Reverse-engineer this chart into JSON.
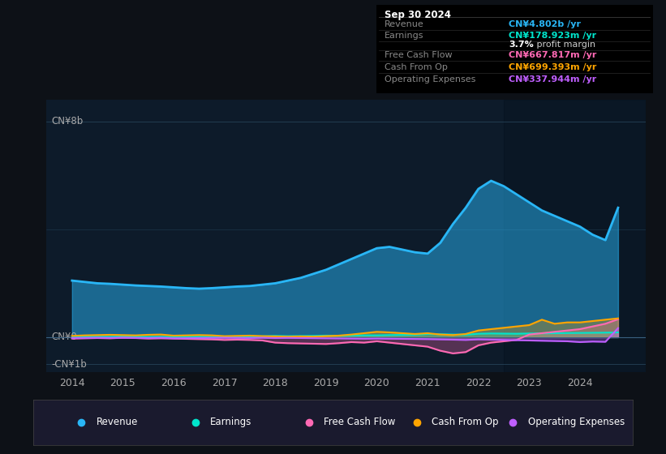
{
  "bg_color": "#0d1117",
  "plot_bg_color": "#0d1b2a",
  "title_box": {
    "date": "Sep 30 2024",
    "rows": [
      {
        "label": "Revenue",
        "value": "CN¥4.802b /yr",
        "value_color": "#29b6f6"
      },
      {
        "label": "Earnings",
        "value": "CN¥178.923m /yr",
        "value_color": "#00e5cc"
      },
      {
        "label": "",
        "value": "3.7% profit margin",
        "value_color": "#cccccc",
        "bold_part": "3.7%"
      },
      {
        "label": "Free Cash Flow",
        "value": "CN¥667.817m /yr",
        "value_color": "#ff69b4"
      },
      {
        "label": "Cash From Op",
        "value": "CN¥699.393m /yr",
        "value_color": "#ffa500"
      },
      {
        "label": "Operating Expenses",
        "value": "CN¥337.944m /yr",
        "value_color": "#bf5fff"
      }
    ]
  },
  "ylabel_top": "CN¥8b",
  "ylabel_zero": "CN¥0",
  "ylabel_neg": "-CN¥1b",
  "ylim": [
    -1300000000.0,
    8800000000.0
  ],
  "xlim": [
    2013.5,
    2025.3
  ],
  "years_x": [
    2014.0,
    2014.25,
    2014.5,
    2014.75,
    2015.0,
    2015.25,
    2015.5,
    2015.75,
    2016.0,
    2016.25,
    2016.5,
    2016.75,
    2017.0,
    2017.25,
    2017.5,
    2017.75,
    2018.0,
    2018.25,
    2018.5,
    2018.75,
    2019.0,
    2019.25,
    2019.5,
    2019.75,
    2020.0,
    2020.25,
    2020.5,
    2020.75,
    2021.0,
    2021.25,
    2021.5,
    2021.75,
    2022.0,
    2022.25,
    2022.5,
    2022.75,
    2023.0,
    2023.25,
    2023.5,
    2023.75,
    2024.0,
    2024.25,
    2024.5,
    2024.75
  ],
  "revenue": [
    2100000000.0,
    2050000000.0,
    2000000000.0,
    1980000000.0,
    1950000000.0,
    1920000000.0,
    1900000000.0,
    1880000000.0,
    1850000000.0,
    1820000000.0,
    1800000000.0,
    1820000000.0,
    1850000000.0,
    1880000000.0,
    1900000000.0,
    1950000000.0,
    2000000000.0,
    2100000000.0,
    2200000000.0,
    2350000000.0,
    2500000000.0,
    2700000000.0,
    2900000000.0,
    3100000000.0,
    3300000000.0,
    3350000000.0,
    3250000000.0,
    3150000000.0,
    3100000000.0,
    3500000000.0,
    4200000000.0,
    4800000000.0,
    5500000000.0,
    5800000000.0,
    5600000000.0,
    5300000000.0,
    5000000000.0,
    4700000000.0,
    4500000000.0,
    4300000000.0,
    4100000000.0,
    3800000000.0,
    3600000000.0,
    4802000000.0
  ],
  "earnings": [
    20000000.0,
    25000000.0,
    20000000.0,
    15000000.0,
    30000000.0,
    25000000.0,
    10000000.0,
    15000000.0,
    10000000.0,
    15000000.0,
    20000000.0,
    15000000.0,
    20000000.0,
    25000000.0,
    30000000.0,
    35000000.0,
    50000000.0,
    40000000.0,
    45000000.0,
    50000000.0,
    60000000.0,
    55000000.0,
    65000000.0,
    70000000.0,
    70000000.0,
    80000000.0,
    85000000.0,
    90000000.0,
    120000000.0,
    110000000.0,
    100000000.0,
    90000000.0,
    130000000.0,
    140000000.0,
    135000000.0,
    130000000.0,
    140000000.0,
    145000000.0,
    150000000.0,
    155000000.0,
    160000000.0,
    165000000.0,
    170000000.0,
    179000000.0
  ],
  "free_cash_flow": [
    -50000000.0,
    -40000000.0,
    -30000000.0,
    -40000000.0,
    -20000000.0,
    -30000000.0,
    -50000000.0,
    -40000000.0,
    -50000000.0,
    -60000000.0,
    -70000000.0,
    -80000000.0,
    -100000000.0,
    -90000000.0,
    -100000000.0,
    -120000000.0,
    -200000000.0,
    -220000000.0,
    -230000000.0,
    -240000000.0,
    -250000000.0,
    -220000000.0,
    -180000000.0,
    -200000000.0,
    -150000000.0,
    -200000000.0,
    -250000000.0,
    -300000000.0,
    -350000000.0,
    -500000000.0,
    -600000000.0,
    -550000000.0,
    -300000000.0,
    -200000000.0,
    -150000000.0,
    -100000000.0,
    100000000.0,
    150000000.0,
    200000000.0,
    250000000.0,
    300000000.0,
    400000000.0,
    500000000.0,
    668000000.0
  ],
  "cash_from_op": [
    50000000.0,
    70000000.0,
    80000000.0,
    90000000.0,
    80000000.0,
    70000000.0,
    90000000.0,
    100000000.0,
    60000000.0,
    70000000.0,
    80000000.0,
    70000000.0,
    40000000.0,
    50000000.0,
    60000000.0,
    40000000.0,
    30000000.0,
    20000000.0,
    30000000.0,
    20000000.0,
    40000000.0,
    60000000.0,
    100000000.0,
    150000000.0,
    200000000.0,
    180000000.0,
    150000000.0,
    120000000.0,
    150000000.0,
    100000000.0,
    80000000.0,
    120000000.0,
    250000000.0,
    300000000.0,
    350000000.0,
    400000000.0,
    450000000.0,
    650000000.0,
    500000000.0,
    550000000.0,
    550000000.0,
    600000000.0,
    650000000.0,
    699000000.0
  ],
  "op_expenses": [
    -30000000.0,
    -25000000.0,
    -20000000.0,
    -25000000.0,
    -20000000.0,
    -25000000.0,
    -30000000.0,
    -20000000.0,
    -40000000.0,
    -35000000.0,
    -30000000.0,
    -25000000.0,
    -20000000.0,
    -25000000.0,
    -30000000.0,
    -20000000.0,
    -30000000.0,
    -25000000.0,
    -30000000.0,
    -35000000.0,
    -40000000.0,
    -45000000.0,
    -50000000.0,
    -55000000.0,
    -50000000.0,
    -55000000.0,
    -60000000.0,
    -65000000.0,
    -70000000.0,
    -80000000.0,
    -90000000.0,
    -100000000.0,
    -80000000.0,
    -90000000.0,
    -100000000.0,
    -110000000.0,
    -120000000.0,
    -130000000.0,
    -140000000.0,
    -150000000.0,
    -180000000.0,
    -160000000.0,
    -170000000.0,
    338000000.0
  ],
  "revenue_color": "#29b6f6",
  "earnings_color": "#00e5cc",
  "fcf_color": "#ff69b4",
  "cfop_color": "#ffa500",
  "opex_color": "#bf5fff",
  "shaded_region_start": 2022.5,
  "legend_items": [
    {
      "label": "Revenue",
      "color": "#29b6f6"
    },
    {
      "label": "Earnings",
      "color": "#00e5cc"
    },
    {
      "label": "Free Cash Flow",
      "color": "#ff69b4"
    },
    {
      "label": "Cash From Op",
      "color": "#ffa500"
    },
    {
      "label": "Operating Expenses",
      "color": "#bf5fff"
    }
  ]
}
